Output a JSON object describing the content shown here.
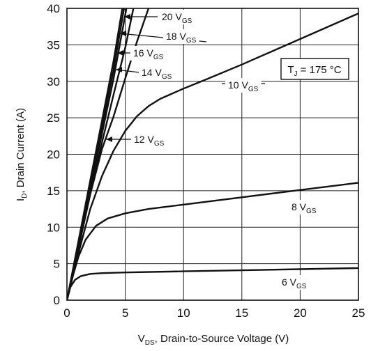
{
  "chart_data": {
    "type": "line",
    "xlabel": "V",
    "xlabel_sub": "DS",
    "xlabel_rest": ", Drain-to-Source Voltage (V)",
    "ylabel": "I",
    "ylabel_sub": "D",
    "ylabel_rest": ", Drain Current (A)",
    "xlim": [
      0,
      25
    ],
    "ylim": [
      0,
      40
    ],
    "x_ticks": [
      "0",
      "5",
      "10",
      "15",
      "20",
      "25"
    ],
    "y_ticks": [
      "0",
      "5",
      "10",
      "15",
      "20",
      "25",
      "30",
      "35",
      "40"
    ],
    "grid": true,
    "annotation": {
      "prefix": "T",
      "sub": "J",
      "text": " = 175 °C"
    },
    "series": [
      {
        "name": "6 V",
        "name_sub": "GS",
        "x": [
          0,
          0.3,
          0.7,
          1.2,
          2,
          3,
          5,
          10,
          15,
          20,
          25
        ],
        "y": [
          0,
          1.8,
          2.8,
          3.3,
          3.6,
          3.7,
          3.8,
          3.95,
          4.1,
          4.25,
          4.4
        ]
      },
      {
        "name": "8 V",
        "name_sub": "GS",
        "x": [
          0,
          0.5,
          1,
          1.6,
          2.5,
          3.5,
          5,
          7,
          10,
          15,
          20,
          25
        ],
        "y": [
          0,
          3.3,
          6,
          8.3,
          10.2,
          11.2,
          11.9,
          12.5,
          13.1,
          14.1,
          15.1,
          16.1
        ]
      },
      {
        "name": "10 V",
        "name_sub": "GS",
        "x": [
          0,
          1,
          2,
          3,
          4,
          5,
          6,
          7,
          8,
          10,
          12,
          15,
          20,
          25
        ],
        "y": [
          0,
          6.5,
          12.5,
          17,
          20.5,
          23.2,
          25.2,
          26.6,
          27.6,
          29,
          30.3,
          32.3,
          35.8,
          39.3
        ]
      },
      {
        "name": "12 V",
        "name_sub": "GS",
        "x": [
          0,
          1,
          2,
          3,
          4,
          5,
          6,
          7
        ],
        "y": [
          0,
          7.2,
          14.5,
          20.7,
          25.2,
          30.4,
          35.4,
          40
        ]
      },
      {
        "name": "14 V",
        "name_sub": "GS",
        "x": [
          0,
          1,
          2,
          3,
          4,
          5,
          5.7
        ],
        "y": [
          0,
          7.3,
          14.6,
          21.6,
          28.2,
          34.6,
          40
        ]
      },
      {
        "name": "16 V",
        "name_sub": "GS",
        "x": [
          0,
          1,
          2,
          3,
          4,
          5.1
        ],
        "y": [
          0,
          7.6,
          15.2,
          22.8,
          30.4,
          40
        ]
      },
      {
        "name": "18 V",
        "name_sub": "GS",
        "x": [
          0,
          1,
          2,
          3,
          4,
          4.9
        ],
        "y": [
          0,
          7.9,
          15.8,
          23.7,
          31.6,
          40
        ]
      },
      {
        "name": "20 V",
        "name_sub": "GS",
        "x": [
          0,
          1,
          2,
          3,
          4,
          4.75
        ],
        "y": [
          0,
          8.2,
          16.4,
          24.6,
          32.8,
          40
        ]
      }
    ]
  }
}
